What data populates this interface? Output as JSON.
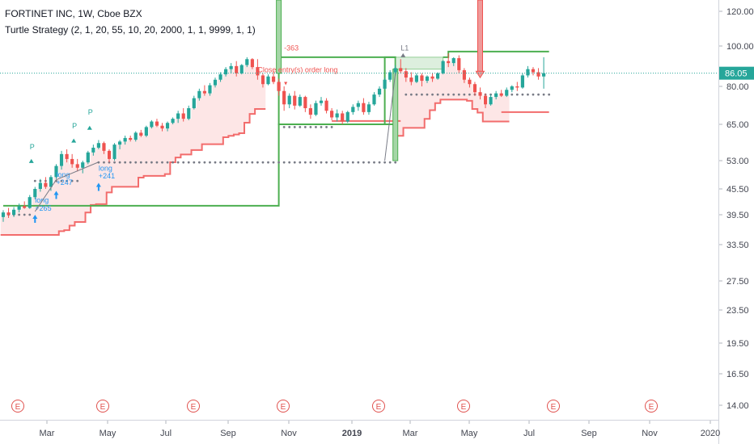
{
  "header": {
    "title": "FORTINET INC, 1W, Cboe BZX",
    "subtitle": "Turtle Strategy (2, 1, 20, 55, 10, 20, 2000, 1, 1, 9999, 1, 1)"
  },
  "colors": {
    "up": "#26a69a",
    "down": "#ef5350",
    "stop_line": "#f26c6c",
    "band_fill": "#fde3e3",
    "box_green": "#4caf50",
    "dots": "#787b86",
    "price_line": "#26a69a",
    "e_marker": "#e0524f"
  },
  "chart_data": {
    "type": "candlestick",
    "y_axis": {
      "scale": "log",
      "ticks": [
        "120.00",
        "100.00",
        "80.00",
        "65.00",
        "53.00",
        "45.50",
        "39.50",
        "33.50",
        "27.50",
        "23.50",
        "19.50",
        "16.50",
        "14.00"
      ],
      "range": [
        12.5,
        135
      ]
    },
    "x_axis": {
      "labels": [
        {
          "text": "Mar",
          "bold": false
        },
        {
          "text": "May",
          "bold": false
        },
        {
          "text": "Jul",
          "bold": false
        },
        {
          "text": "Sep",
          "bold": false
        },
        {
          "text": "Nov",
          "bold": false
        },
        {
          "text": "2019",
          "bold": true
        },
        {
          "text": "Mar",
          "bold": false
        },
        {
          "text": "May",
          "bold": false
        },
        {
          "text": "Jul",
          "bold": false
        },
        {
          "text": "Sep",
          "bold": false
        },
        {
          "text": "Nov",
          "bold": false
        },
        {
          "text": "2020",
          "bold": false
        }
      ]
    },
    "last_price": "86.05",
    "candles": [
      {
        "o": 39.0,
        "h": 40.5,
        "l": 38.0,
        "c": 40.0
      },
      {
        "o": 40.0,
        "h": 41.0,
        "l": 38.8,
        "c": 39.5
      },
      {
        "o": 39.5,
        "h": 41.2,
        "l": 39.0,
        "c": 40.6
      },
      {
        "o": 40.6,
        "h": 42.0,
        "l": 40.0,
        "c": 41.4
      },
      {
        "o": 41.4,
        "h": 42.5,
        "l": 40.8,
        "c": 41.0
      },
      {
        "o": 41.0,
        "h": 44.0,
        "l": 40.8,
        "c": 43.5
      },
      {
        "o": 43.5,
        "h": 46.0,
        "l": 43.0,
        "c": 45.5
      },
      {
        "o": 45.5,
        "h": 48.0,
        "l": 44.8,
        "c": 47.0
      },
      {
        "o": 47.0,
        "h": 48.5,
        "l": 45.5,
        "c": 46.0
      },
      {
        "o": 46.0,
        "h": 49.0,
        "l": 45.0,
        "c": 48.5
      },
      {
        "o": 48.5,
        "h": 52.0,
        "l": 48.0,
        "c": 51.5
      },
      {
        "o": 51.5,
        "h": 56.0,
        "l": 50.5,
        "c": 55.0
      },
      {
        "o": 55.0,
        "h": 56.5,
        "l": 52.5,
        "c": 53.5
      },
      {
        "o": 53.5,
        "h": 55.0,
        "l": 51.0,
        "c": 52.0
      },
      {
        "o": 52.0,
        "h": 53.5,
        "l": 50.0,
        "c": 51.0
      },
      {
        "o": 51.0,
        "h": 53.0,
        "l": 49.5,
        "c": 52.5
      },
      {
        "o": 52.5,
        "h": 56.0,
        "l": 52.0,
        "c": 55.5
      },
      {
        "o": 55.5,
        "h": 58.0,
        "l": 54.5,
        "c": 57.0
      },
      {
        "o": 57.0,
        "h": 59.5,
        "l": 56.5,
        "c": 58.5
      },
      {
        "o": 58.5,
        "h": 59.0,
        "l": 55.0,
        "c": 56.0
      },
      {
        "o": 56.0,
        "h": 56.5,
        "l": 52.5,
        "c": 53.5
      },
      {
        "o": 53.5,
        "h": 58.5,
        "l": 53.0,
        "c": 58.0
      },
      {
        "o": 58.0,
        "h": 59.5,
        "l": 56.5,
        "c": 59.0
      },
      {
        "o": 59.0,
        "h": 61.0,
        "l": 58.0,
        "c": 60.2
      },
      {
        "o": 60.2,
        "h": 61.0,
        "l": 59.0,
        "c": 59.6
      },
      {
        "o": 59.6,
        "h": 62.5,
        "l": 59.0,
        "c": 62.0
      },
      {
        "o": 62.0,
        "h": 63.0,
        "l": 60.5,
        "c": 61.0
      },
      {
        "o": 61.0,
        "h": 64.5,
        "l": 60.5,
        "c": 64.0
      },
      {
        "o": 64.0,
        "h": 66.5,
        "l": 63.5,
        "c": 66.0
      },
      {
        "o": 66.0,
        "h": 67.0,
        "l": 64.0,
        "c": 64.5
      },
      {
        "o": 64.5,
        "h": 65.5,
        "l": 62.5,
        "c": 63.5
      },
      {
        "o": 63.5,
        "h": 66.0,
        "l": 62.5,
        "c": 65.5
      },
      {
        "o": 65.5,
        "h": 67.5,
        "l": 65.0,
        "c": 67.0
      },
      {
        "o": 67.0,
        "h": 70.0,
        "l": 65.5,
        "c": 69.0
      },
      {
        "o": 69.0,
        "h": 71.0,
        "l": 66.0,
        "c": 67.0
      },
      {
        "o": 67.0,
        "h": 72.0,
        "l": 66.5,
        "c": 71.0
      },
      {
        "o": 71.0,
        "h": 76.0,
        "l": 70.5,
        "c": 75.0
      },
      {
        "o": 75.0,
        "h": 79.0,
        "l": 74.0,
        "c": 78.0
      },
      {
        "o": 78.0,
        "h": 80.5,
        "l": 76.0,
        "c": 77.0
      },
      {
        "o": 77.0,
        "h": 81.5,
        "l": 76.0,
        "c": 80.5
      },
      {
        "o": 80.5,
        "h": 84.0,
        "l": 79.5,
        "c": 83.0
      },
      {
        "o": 83.0,
        "h": 86.5,
        "l": 82.0,
        "c": 85.5
      },
      {
        "o": 85.5,
        "h": 89.0,
        "l": 84.5,
        "c": 88.0
      },
      {
        "o": 88.0,
        "h": 91.0,
        "l": 86.0,
        "c": 89.5
      },
      {
        "o": 89.5,
        "h": 92.0,
        "l": 84.5,
        "c": 86.0
      },
      {
        "o": 86.0,
        "h": 90.5,
        "l": 85.5,
        "c": 90.0
      },
      {
        "o": 90.0,
        "h": 94.0,
        "l": 89.0,
        "c": 93.0
      },
      {
        "o": 93.0,
        "h": 93.5,
        "l": 88.0,
        "c": 89.0
      },
      {
        "o": 89.0,
        "h": 93.0,
        "l": 83.0,
        "c": 85.0
      },
      {
        "o": 85.0,
        "h": 86.0,
        "l": 79.5,
        "c": 81.0
      },
      {
        "o": 81.0,
        "h": 85.5,
        "l": 80.5,
        "c": 84.5
      },
      {
        "o": 84.5,
        "h": 87.0,
        "l": 81.0,
        "c": 82.0
      },
      {
        "o": 82.0,
        "h": 83.5,
        "l": 76.0,
        "c": 78.0
      },
      {
        "o": 78.0,
        "h": 80.0,
        "l": 70.0,
        "c": 72.5
      },
      {
        "o": 72.5,
        "h": 77.0,
        "l": 71.0,
        "c": 76.0
      },
      {
        "o": 76.0,
        "h": 78.0,
        "l": 70.5,
        "c": 72.0
      },
      {
        "o": 72.0,
        "h": 76.5,
        "l": 71.5,
        "c": 75.5
      },
      {
        "o": 75.5,
        "h": 76.0,
        "l": 69.5,
        "c": 71.0
      },
      {
        "o": 71.0,
        "h": 72.5,
        "l": 67.0,
        "c": 68.5
      },
      {
        "o": 68.5,
        "h": 74.0,
        "l": 68.0,
        "c": 73.0
      },
      {
        "o": 73.0,
        "h": 75.5,
        "l": 72.0,
        "c": 74.0
      },
      {
        "o": 74.0,
        "h": 75.0,
        "l": 69.0,
        "c": 70.0
      },
      {
        "o": 70.0,
        "h": 71.0,
        "l": 66.5,
        "c": 67.5
      },
      {
        "o": 67.5,
        "h": 70.5,
        "l": 66.0,
        "c": 69.0
      },
      {
        "o": 69.0,
        "h": 70.0,
        "l": 65.0,
        "c": 66.0
      },
      {
        "o": 66.0,
        "h": 70.0,
        "l": 65.5,
        "c": 69.5
      },
      {
        "o": 69.5,
        "h": 72.5,
        "l": 68.5,
        "c": 71.5
      },
      {
        "o": 71.5,
        "h": 74.0,
        "l": 70.0,
        "c": 73.0
      },
      {
        "o": 73.0,
        "h": 75.0,
        "l": 68.5,
        "c": 69.5
      },
      {
        "o": 69.5,
        "h": 73.5,
        "l": 68.5,
        "c": 72.5
      },
      {
        "o": 72.5,
        "h": 77.5,
        "l": 72.0,
        "c": 76.5
      },
      {
        "o": 76.5,
        "h": 80.0,
        "l": 75.5,
        "c": 79.0
      },
      {
        "o": 79.0,
        "h": 84.0,
        "l": 78.5,
        "c": 83.0
      },
      {
        "o": 83.0,
        "h": 87.5,
        "l": 82.0,
        "c": 86.5
      },
      {
        "o": 86.5,
        "h": 90.0,
        "l": 85.0,
        "c": 88.5
      },
      {
        "o": 88.5,
        "h": 93.0,
        "l": 86.0,
        "c": 87.0
      },
      {
        "o": 87.0,
        "h": 88.5,
        "l": 82.0,
        "c": 84.0
      },
      {
        "o": 84.0,
        "h": 86.5,
        "l": 80.5,
        "c": 82.0
      },
      {
        "o": 82.0,
        "h": 86.0,
        "l": 81.5,
        "c": 85.0
      },
      {
        "o": 85.0,
        "h": 86.0,
        "l": 80.0,
        "c": 82.5
      },
      {
        "o": 82.5,
        "h": 85.0,
        "l": 81.5,
        "c": 84.5
      },
      {
        "o": 84.5,
        "h": 86.0,
        "l": 82.0,
        "c": 83.5
      },
      {
        "o": 83.5,
        "h": 86.5,
        "l": 83.0,
        "c": 86.0
      },
      {
        "o": 86.0,
        "h": 92.5,
        "l": 85.5,
        "c": 92.0
      },
      {
        "o": 92.0,
        "h": 96.0,
        "l": 89.0,
        "c": 91.0
      },
      {
        "o": 91.0,
        "h": 94.0,
        "l": 89.5,
        "c": 93.5
      },
      {
        "o": 93.5,
        "h": 95.0,
        "l": 86.0,
        "c": 87.5
      },
      {
        "o": 87.5,
        "h": 88.5,
        "l": 81.5,
        "c": 83.0
      },
      {
        "o": 83.0,
        "h": 84.0,
        "l": 79.5,
        "c": 81.0
      },
      {
        "o": 81.0,
        "h": 82.0,
        "l": 76.0,
        "c": 77.5
      },
      {
        "o": 77.5,
        "h": 79.5,
        "l": 74.5,
        "c": 76.0
      },
      {
        "o": 76.0,
        "h": 77.0,
        "l": 71.0,
        "c": 72.5
      },
      {
        "o": 72.5,
        "h": 76.5,
        "l": 72.0,
        "c": 75.5
      },
      {
        "o": 75.5,
        "h": 78.0,
        "l": 74.5,
        "c": 77.0
      },
      {
        "o": 77.0,
        "h": 78.5,
        "l": 75.5,
        "c": 76.0
      },
      {
        "o": 76.0,
        "h": 79.5,
        "l": 75.5,
        "c": 78.5
      },
      {
        "o": 78.5,
        "h": 80.5,
        "l": 77.5,
        "c": 80.0
      },
      {
        "o": 80.0,
        "h": 82.0,
        "l": 78.0,
        "c": 79.5
      },
      {
        "o": 79.5,
        "h": 86.0,
        "l": 79.0,
        "c": 85.0
      },
      {
        "o": 85.0,
        "h": 89.5,
        "l": 84.0,
        "c": 88.0
      },
      {
        "o": 88.0,
        "h": 89.0,
        "l": 85.0,
        "c": 86.5
      },
      {
        "o": 86.5,
        "h": 88.5,
        "l": 83.0,
        "c": 84.5
      },
      {
        "o": 84.5,
        "h": 94.0,
        "l": 79.0,
        "c": 86.05
      }
    ],
    "earnings_markers": [
      "E",
      "E",
      "E",
      "E",
      "E",
      "E",
      "E",
      "E"
    ],
    "annotations": [
      {
        "text": "P",
        "color": "#26a69a"
      },
      {
        "text": "P",
        "color": "#26a69a"
      },
      {
        "text": "P",
        "color": "#26a69a"
      },
      {
        "text": "long",
        "color": "#2196f3"
      },
      {
        "text": "+247",
        "color": "#2196f3"
      },
      {
        "text": "long",
        "color": "#2196f3"
      },
      {
        "text": "+241",
        "color": "#2196f3"
      },
      {
        "text": "long",
        "color": "#2196f3"
      },
      {
        "text": "+265",
        "color": "#2196f3"
      },
      {
        "text": "Close entry(s) order long",
        "color": "#ef5350"
      },
      {
        "text": "-363",
        "color": "#ef5350"
      },
      {
        "text": "L1",
        "color": "#787b86"
      }
    ]
  }
}
